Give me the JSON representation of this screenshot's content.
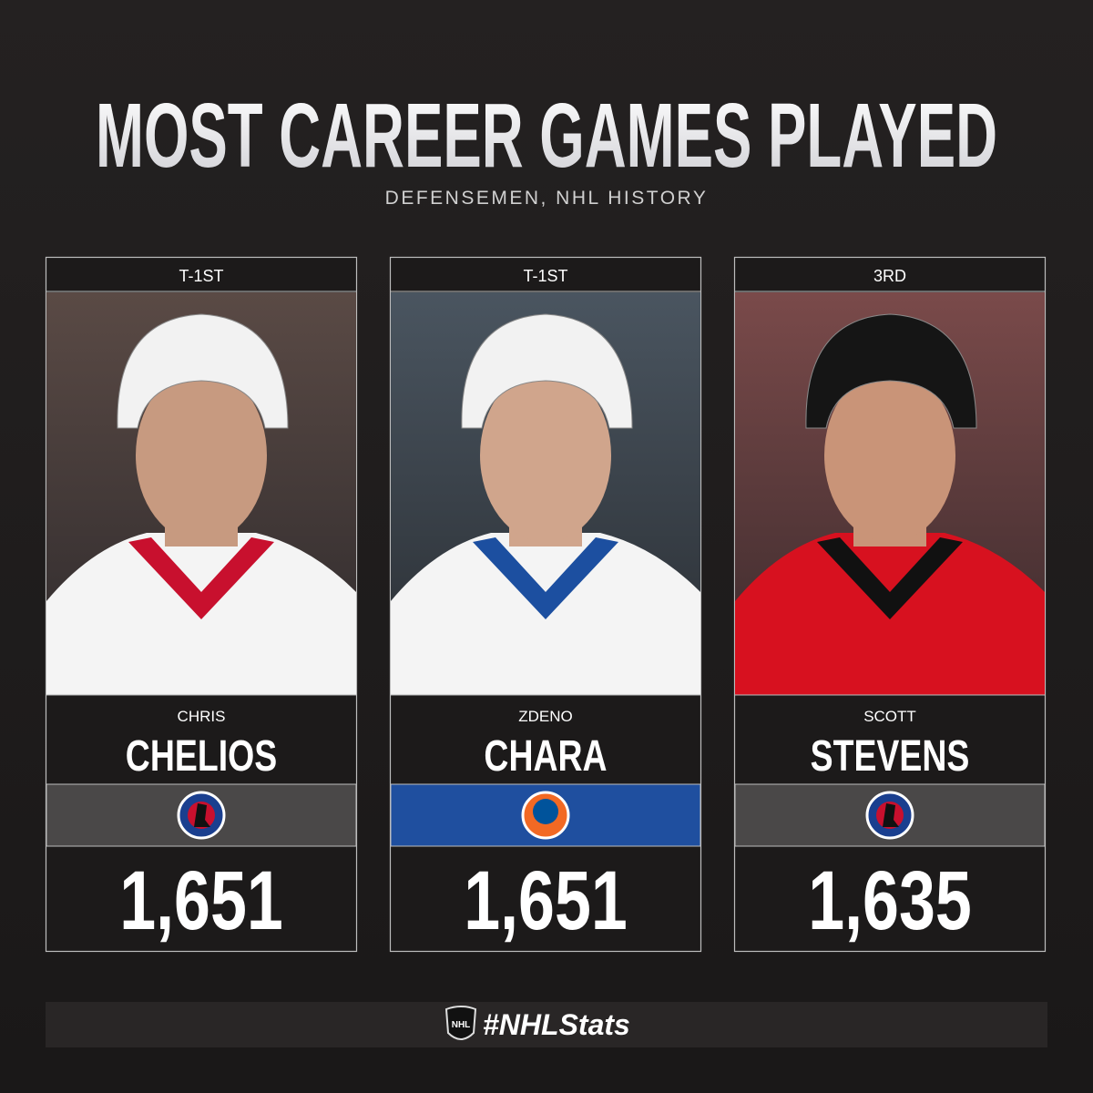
{
  "header": {
    "title": "MOST CAREER GAMES PLAYED",
    "subtitle": "DEFENSEMEN, NHL HISTORY"
  },
  "cards": [
    {
      "rank": "T-1ST",
      "first_name": "CHRIS",
      "last_name": "CHELIOS",
      "games": "1,651"
    },
    {
      "rank": "T-1ST",
      "first_name": "ZDENO",
      "last_name": "CHARA",
      "games": "1,651"
    },
    {
      "rank": "3RD",
      "first_name": "SCOTT",
      "last_name": "STEVENS",
      "games": "1,635"
    }
  ],
  "footer": {
    "hashtag": "#NHLStats"
  }
}
